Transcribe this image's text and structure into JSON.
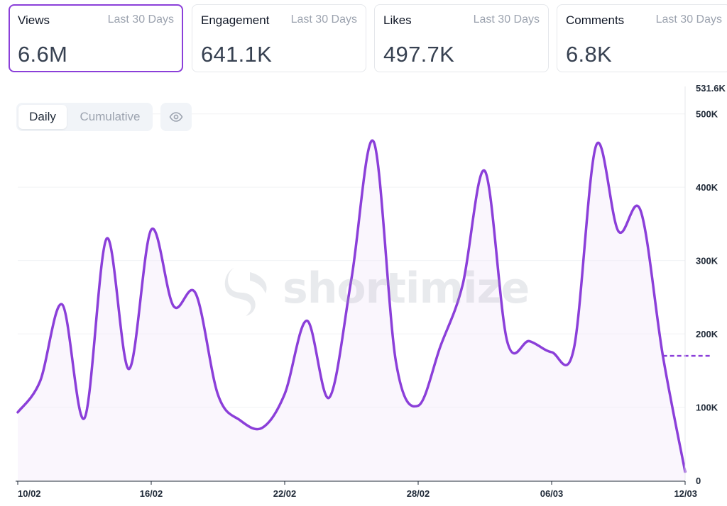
{
  "cards": [
    {
      "title": "Views",
      "period": "Last 30 Days",
      "value": "6.6M",
      "active": true
    },
    {
      "title": "Engagement",
      "period": "Last 30 Days",
      "value": "641.1K",
      "active": false
    },
    {
      "title": "Likes",
      "period": "Last 30 Days",
      "value": "497.7K",
      "active": false
    },
    {
      "title": "Comments",
      "period": "Last 30 Days",
      "value": "6.8K",
      "active": false
    }
  ],
  "toggle": {
    "daily": "Daily",
    "cumulative": "Cumulative",
    "selected": "Daily"
  },
  "eye_icon": "eye-icon",
  "watermark": {
    "text": "shortimize"
  },
  "colors": {
    "line": "#8b3fd9",
    "active_border": "#8b3fd9",
    "fill": "#f3ecfb",
    "reference": "#8b3fd9"
  },
  "chart_data": {
    "type": "area",
    "x": [
      "10/02",
      "11/02",
      "12/02",
      "13/02",
      "14/02",
      "15/02",
      "16/02",
      "17/02",
      "18/02",
      "19/02",
      "20/02",
      "21/02",
      "22/02",
      "23/02",
      "24/02",
      "25/02",
      "26/02",
      "27/02",
      "28/02",
      "01/03",
      "02/03",
      "03/03",
      "04/03",
      "05/03",
      "06/03",
      "07/03",
      "08/03",
      "09/03",
      "10/03",
      "11/03",
      "12/03"
    ],
    "series": [
      {
        "values": [
          93000,
          135000,
          240000,
          85000,
          330000,
          152000,
          342000,
          238000,
          255000,
          117000,
          82000,
          72000,
          118000,
          218000,
          113000,
          275000,
          462000,
          162000,
          102000,
          183000,
          267000,
          422000,
          190000,
          190000,
          175000,
          180000,
          457000,
          340000,
          368000,
          170000,
          12000
        ]
      }
    ],
    "xticks": [
      "10/02",
      "16/02",
      "22/02",
      "28/02",
      "06/03",
      "12/03"
    ],
    "yticks": [
      {
        "value": 0,
        "label": "0"
      },
      {
        "value": 100000,
        "label": "100K"
      },
      {
        "value": 200000,
        "label": "200K"
      },
      {
        "value": 300000,
        "label": "300K"
      },
      {
        "value": 400000,
        "label": "400K"
      },
      {
        "value": 500000,
        "label": "500K"
      },
      {
        "value": 531600,
        "label": "531.6K"
      }
    ],
    "ylim": [
      0,
      531600
    ],
    "reference_line": {
      "from": "11/03",
      "to": "12/03",
      "value": 170000,
      "style": "dashed"
    },
    "grid": true,
    "y_axis_side": "right"
  }
}
